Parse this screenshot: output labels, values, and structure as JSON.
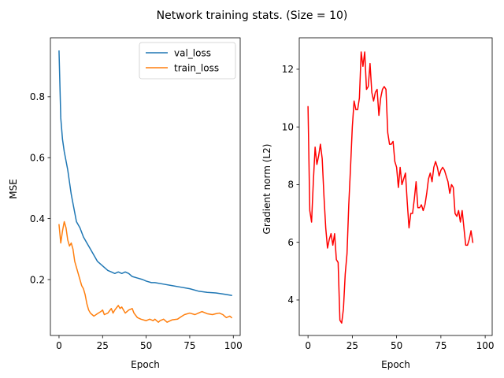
{
  "chart_data": [
    {
      "type": "line",
      "title": "Network training stats. (Size = 10)",
      "xlabel": "Epoch",
      "ylabel": "MSE",
      "xlim": [
        -4.95,
        103.95
      ],
      "ylim": [
        0.0165,
        0.9935
      ],
      "xticks": [
        0,
        25,
        50,
        75,
        100
      ],
      "yticks": [
        0.2,
        0.4,
        0.6,
        0.8
      ],
      "legend": "top-right",
      "grid": false,
      "series": [
        {
          "name": "val_loss",
          "color": "#1f77b4",
          "points": [
            [
              0,
              0.95
            ],
            [
              1,
              0.73
            ],
            [
              2,
              0.66
            ],
            [
              3,
              0.62
            ],
            [
              4,
              0.59
            ],
            [
              5,
              0.56
            ],
            [
              6,
              0.52
            ],
            [
              7,
              0.48
            ],
            [
              8,
              0.45
            ],
            [
              9,
              0.42
            ],
            [
              10,
              0.39
            ],
            [
              12,
              0.37
            ],
            [
              14,
              0.34
            ],
            [
              16,
              0.32
            ],
            [
              18,
              0.3
            ],
            [
              20,
              0.28
            ],
            [
              22,
              0.26
            ],
            [
              24,
              0.25
            ],
            [
              26,
              0.24
            ],
            [
              28,
              0.23
            ],
            [
              30,
              0.225
            ],
            [
              32,
              0.22
            ],
            [
              34,
              0.225
            ],
            [
              36,
              0.22
            ],
            [
              38,
              0.225
            ],
            [
              40,
              0.22
            ],
            [
              42,
              0.21
            ],
            [
              45,
              0.205
            ],
            [
              48,
              0.2
            ],
            [
              50,
              0.195
            ],
            [
              53,
              0.19
            ],
            [
              55,
              0.19
            ],
            [
              60,
              0.185
            ],
            [
              65,
              0.18
            ],
            [
              70,
              0.175
            ],
            [
              75,
              0.17
            ],
            [
              80,
              0.162
            ],
            [
              85,
              0.158
            ],
            [
              90,
              0.156
            ],
            [
              95,
              0.152
            ],
            [
              99,
              0.148
            ]
          ]
        },
        {
          "name": "train_loss",
          "color": "#ff7f0e",
          "points": [
            [
              0,
              0.38
            ],
            [
              1,
              0.32
            ],
            [
              2,
              0.36
            ],
            [
              3,
              0.39
            ],
            [
              4,
              0.37
            ],
            [
              5,
              0.33
            ],
            [
              6,
              0.31
            ],
            [
              7,
              0.32
            ],
            [
              8,
              0.3
            ],
            [
              9,
              0.26
            ],
            [
              10,
              0.24
            ],
            [
              11,
              0.22
            ],
            [
              12,
              0.2
            ],
            [
              13,
              0.18
            ],
            [
              14,
              0.17
            ],
            [
              15,
              0.15
            ],
            [
              16,
              0.12
            ],
            [
              17,
              0.1
            ],
            [
              18,
              0.09
            ],
            [
              19,
              0.085
            ],
            [
              20,
              0.08
            ],
            [
              22,
              0.088
            ],
            [
              24,
              0.095
            ],
            [
              25,
              0.1
            ],
            [
              26,
              0.085
            ],
            [
              28,
              0.09
            ],
            [
              30,
              0.105
            ],
            [
              31,
              0.09
            ],
            [
              32,
              0.1
            ],
            [
              34,
              0.115
            ],
            [
              35,
              0.105
            ],
            [
              36,
              0.11
            ],
            [
              37,
              0.1
            ],
            [
              38,
              0.09
            ],
            [
              40,
              0.1
            ],
            [
              42,
              0.105
            ],
            [
              43,
              0.09
            ],
            [
              45,
              0.075
            ],
            [
              47,
              0.07
            ],
            [
              50,
              0.065
            ],
            [
              52,
              0.07
            ],
            [
              54,
              0.065
            ],
            [
              55,
              0.07
            ],
            [
              57,
              0.06
            ],
            [
              58,
              0.065
            ],
            [
              60,
              0.07
            ],
            [
              62,
              0.06
            ],
            [
              65,
              0.068
            ],
            [
              68,
              0.07
            ],
            [
              70,
              0.078
            ],
            [
              72,
              0.085
            ],
            [
              75,
              0.09
            ],
            [
              78,
              0.085
            ],
            [
              80,
              0.09
            ],
            [
              82,
              0.095
            ],
            [
              85,
              0.088
            ],
            [
              88,
              0.085
            ],
            [
              90,
              0.088
            ],
            [
              92,
              0.09
            ],
            [
              94,
              0.085
            ],
            [
              95,
              0.08
            ],
            [
              96,
              0.075
            ],
            [
              98,
              0.08
            ],
            [
              99,
              0.075
            ]
          ]
        }
      ]
    },
    {
      "type": "line",
      "xlabel": "Epoch",
      "ylabel": "Gradient norm (L2)",
      "xlim": [
        -4.95,
        103.95
      ],
      "ylim": [
        2.77,
        13.09
      ],
      "xticks": [
        0,
        25,
        50,
        75,
        100
      ],
      "yticks": [
        4,
        6,
        8,
        10,
        12
      ],
      "grid": false,
      "series": [
        {
          "color": "#ff0000",
          "points": [
            [
              0,
              10.7
            ],
            [
              1,
              7.1
            ],
            [
              2,
              6.7
            ],
            [
              3,
              8.1
            ],
            [
              4,
              9.3
            ],
            [
              5,
              8.7
            ],
            [
              6,
              9
            ],
            [
              7,
              9.4
            ],
            [
              8,
              8.9
            ],
            [
              9,
              7.6
            ],
            [
              10,
              6.5
            ],
            [
              11,
              5.8
            ],
            [
              12,
              6.1
            ],
            [
              13,
              6.3
            ],
            [
              14,
              5.9
            ],
            [
              15,
              6.3
            ],
            [
              16,
              5.4
            ],
            [
              17,
              5.3
            ],
            [
              18,
              3.3
            ],
            [
              19,
              3.2
            ],
            [
              20,
              3.7
            ],
            [
              21,
              4.9
            ],
            [
              22,
              5.6
            ],
            [
              23,
              7.3
            ],
            [
              24,
              8.6
            ],
            [
              25,
              10
            ],
            [
              26,
              10.9
            ],
            [
              27,
              10.6
            ],
            [
              28,
              10.6
            ],
            [
              29,
              11
            ],
            [
              30,
              12.6
            ],
            [
              31,
              12.1
            ],
            [
              32,
              12.6
            ],
            [
              33,
              11.3
            ],
            [
              34,
              11.4
            ],
            [
              35,
              12.2
            ],
            [
              36,
              11.2
            ],
            [
              37,
              10.9
            ],
            [
              38,
              11.2
            ],
            [
              39,
              11.3
            ],
            [
              40,
              10.4
            ],
            [
              41,
              11
            ],
            [
              42,
              11.3
            ],
            [
              43,
              11.4
            ],
            [
              44,
              11.3
            ],
            [
              45,
              9.8
            ],
            [
              46,
              9.4
            ],
            [
              47,
              9.4
            ],
            [
              48,
              9.5
            ],
            [
              49,
              8.8
            ],
            [
              50,
              8.6
            ],
            [
              51,
              7.9
            ],
            [
              52,
              8.6
            ],
            [
              53,
              8
            ],
            [
              54,
              8.2
            ],
            [
              55,
              8.4
            ],
            [
              56,
              7.4
            ],
            [
              57,
              6.5
            ],
            [
              58,
              7
            ],
            [
              59,
              7
            ],
            [
              60,
              7.5
            ],
            [
              61,
              8.1
            ],
            [
              62,
              7.2
            ],
            [
              63,
              7.2
            ],
            [
              64,
              7.3
            ],
            [
              65,
              7.1
            ],
            [
              66,
              7.3
            ],
            [
              67,
              7.7
            ],
            [
              68,
              8.2
            ],
            [
              69,
              8.4
            ],
            [
              70,
              8.1
            ],
            [
              71,
              8.6
            ],
            [
              72,
              8.8
            ],
            [
              73,
              8.6
            ],
            [
              74,
              8.3
            ],
            [
              75,
              8.5
            ],
            [
              76,
              8.6
            ],
            [
              77,
              8.5
            ],
            [
              78,
              8.3
            ],
            [
              79,
              8.1
            ],
            [
              80,
              7.7
            ],
            [
              81,
              8
            ],
            [
              82,
              7.9
            ],
            [
              83,
              7
            ],
            [
              84,
              6.9
            ],
            [
              85,
              7.1
            ],
            [
              86,
              6.7
            ],
            [
              87,
              7.1
            ],
            [
              88,
              6.5
            ],
            [
              89,
              5.9
            ],
            [
              90,
              5.9
            ],
            [
              91,
              6.1
            ],
            [
              92,
              6.4
            ],
            [
              93,
              6
            ]
          ]
        }
      ]
    }
  ]
}
